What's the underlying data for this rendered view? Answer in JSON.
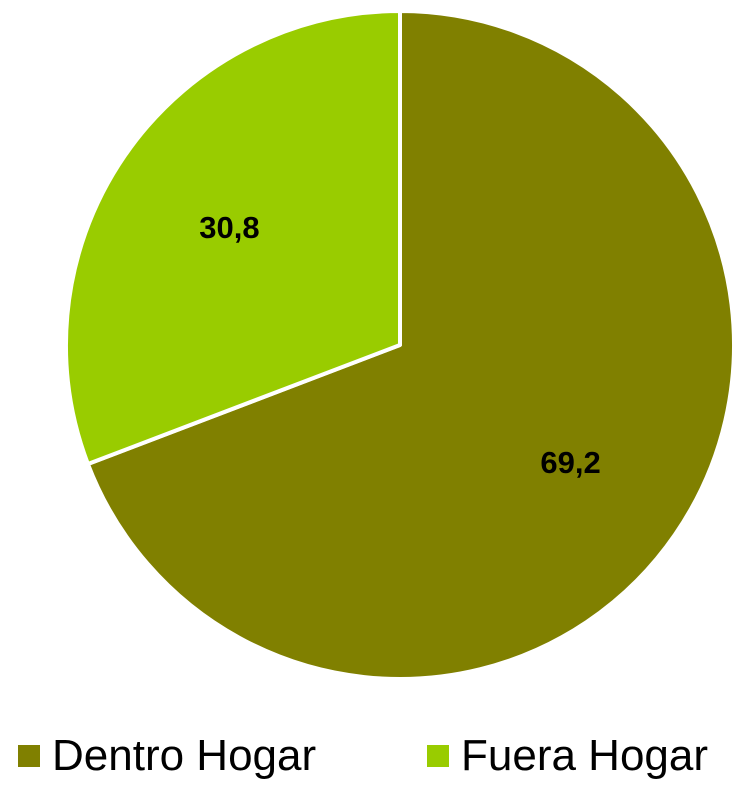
{
  "chart_data": {
    "type": "pie",
    "categories": [
      "Dentro Hogar",
      "Fuera Hogar"
    ],
    "values": [
      69.2,
      30.8
    ],
    "data_labels": [
      "69,2",
      "30,8"
    ],
    "colors": [
      "#808000",
      "#99CC00"
    ],
    "start_angle_deg": 0,
    "direction": "clockwise",
    "legend": {
      "position": "bottom",
      "entries": [
        "Dentro Hogar",
        "Fuera Hogar"
      ]
    }
  },
  "legend": {
    "items": [
      {
        "label": "Dentro Hogar",
        "color": "#808000"
      },
      {
        "label": "Fuera Hogar",
        "color": "#99CC00"
      }
    ]
  }
}
